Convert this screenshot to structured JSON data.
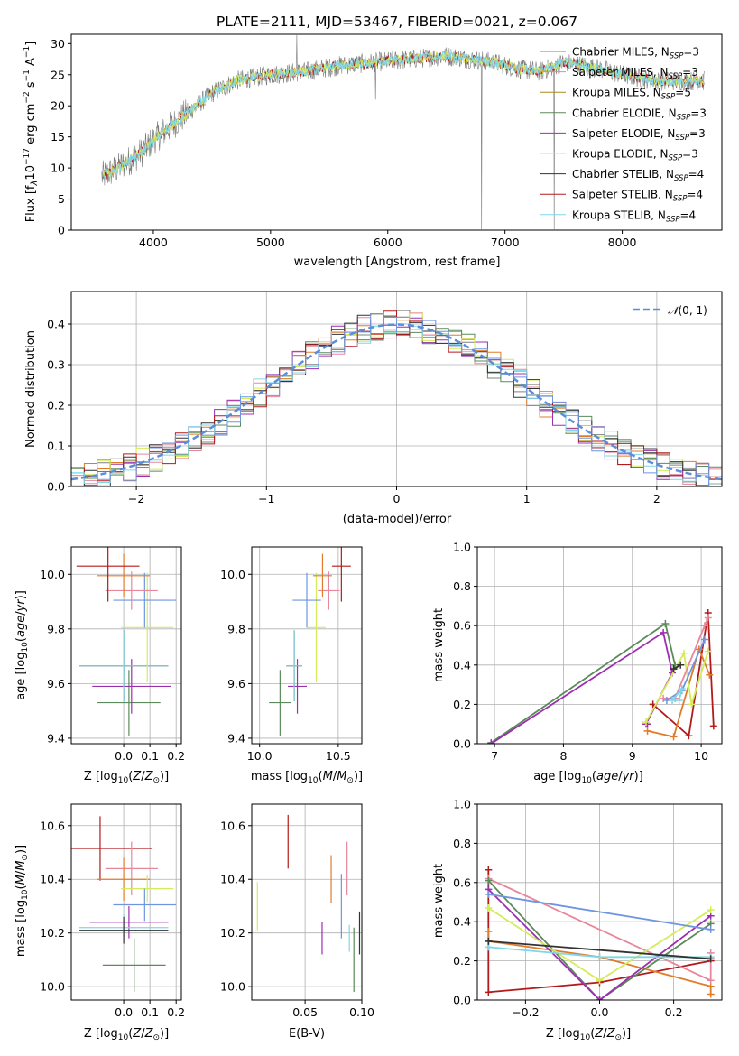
{
  "colors": {
    "chabrier_miles": "#808080",
    "salpeter_miles": "#e8879c",
    "kroupa_miles": "#b08a1a",
    "chabrier_elodie": "#5b8a5b",
    "salpeter_elodie": "#9b2fb0",
    "kroupa_elodie": "#d4ec5a",
    "chabrier_stelib": "#333333",
    "salpeter_stelib": "#b31b1b",
    "kroupa_stelib": "#7fd6e6",
    "normal": "#5b8dd9",
    "orange": "#e07b2a",
    "blue": "#6f95e0"
  },
  "chart_data": [
    {
      "type": "line",
      "title": "PLATE=2111, MJD=53467, FIBERID=0021, z=0.067",
      "xlabel": "wavelength [Angstrom, rest frame]",
      "ylabel": "Flux [fλ10⁻¹⁷ erg cm⁻² s⁻¹ A⁻¹]",
      "xlim": [
        3300,
        8850
      ],
      "ylim": [
        0,
        31.5
      ],
      "xticks": [
        "4000",
        "5000",
        "6000",
        "7000",
        "8000"
      ],
      "yticks": [
        "0",
        "5",
        "10",
        "15",
        "20",
        "25",
        "30"
      ],
      "legend_position": "right",
      "legend": [
        {
          "label": "Chabrier MILES, NSSP=3",
          "color_key": "chabrier_miles"
        },
        {
          "label": "Salpeter MILES, NSSP=3",
          "color_key": "salpeter_miles"
        },
        {
          "label": "Kroupa MILES, NSSP=5",
          "color_key": "kroupa_miles"
        },
        {
          "label": "Chabrier ELODIE, NSSP=3",
          "color_key": "chabrier_elodie"
        },
        {
          "label": "Salpeter ELODIE, NSSP=3",
          "color_key": "salpeter_elodie"
        },
        {
          "label": "Kroupa ELODIE, NSSP=3",
          "color_key": "kroupa_elodie"
        },
        {
          "label": "Chabrier STELIB, NSSP=4",
          "color_key": "chabrier_stelib"
        },
        {
          "label": "Salpeter STELIB, NSSP=4",
          "color_key": "salpeter_stelib"
        },
        {
          "label": "Kroupa STELIB, NSSP=4",
          "color_key": "kroupa_stelib"
        }
      ],
      "continuum": {
        "x": [
          3550,
          3700,
          3900,
          4000,
          4100,
          4300,
          4500,
          4700,
          5000,
          5300,
          5600,
          5900,
          6200,
          6500,
          6700,
          6900,
          7100,
          7300,
          7500,
          7800,
          8000,
          8300,
          8700
        ],
        "y": [
          8.5,
          10,
          12.5,
          14.5,
          16,
          19,
          22,
          24,
          25,
          25.5,
          26.5,
          27,
          27.5,
          28,
          27.5,
          27,
          26,
          25.5,
          27,
          26,
          25,
          24,
          24
        ]
      }
    },
    {
      "type": "line",
      "xlabel": "(data-model)/error",
      "ylabel": "Normed distribution",
      "xlim": [
        -2.5,
        2.5
      ],
      "ylim": [
        0,
        0.48
      ],
      "xticks": [
        "−2",
        "−1",
        "0",
        "1",
        "2"
      ],
      "yticks": [
        "0.0",
        "0.1",
        "0.2",
        "0.3",
        "0.4"
      ],
      "legend": [
        {
          "label": "𝒩(0, 1)",
          "color_key": "normal"
        }
      ],
      "legend_position": "top-right",
      "grid": true
    },
    {
      "type": "scatter",
      "xlabel": "Z [log10(Z/Z⊙)]",
      "ylabel": "age  [log10(age/yr)]",
      "xlim": [
        -0.2,
        0.22
      ],
      "ylim": [
        9.38,
        10.1
      ],
      "xticks": [
        "0.0",
        "0.1",
        "0.2"
      ],
      "yticks": [
        "9.4",
        "9.6",
        "9.8",
        "10.0"
      ],
      "grid": true,
      "points": [
        {
          "x": 0.02,
          "y": 9.53,
          "xerr": 0.12,
          "yerr": 0.12,
          "color_key": "chabrier_elodie"
        },
        {
          "x": 0.03,
          "y": 9.59,
          "xerr": 0.15,
          "yerr": 0.1,
          "color_key": "salpeter_elodie"
        },
        {
          "x": 0.0,
          "y": 9.665,
          "xerr": 0.17,
          "yerr": 0.13,
          "color_key": "chabrier_stelib"
        },
        {
          "x": 0.0,
          "y": 9.665,
          "xerr": 0.17,
          "yerr": 0.13,
          "color_key": "kroupa_stelib"
        },
        {
          "x": 0.09,
          "y": 9.805,
          "xerr": 0.1,
          "yerr": 0.2,
          "color_key": "kroupa_elodie"
        },
        {
          "x": 0.08,
          "y": 9.905,
          "xerr": 0.12,
          "yerr": 0.1,
          "color_key": "blue"
        },
        {
          "x": 0.03,
          "y": 9.94,
          "xerr": 0.1,
          "yerr": 0.07,
          "color_key": "salpeter_miles"
        },
        {
          "x": 0.0,
          "y": 9.995,
          "xerr": 0.1,
          "yerr": 0.08,
          "color_key": "orange"
        },
        {
          "x": -0.06,
          "y": 10.03,
          "xerr": 0.12,
          "yerr": 0.13,
          "color_key": "salpeter_stelib"
        }
      ]
    },
    {
      "type": "scatter",
      "xlabel": "mass [log10(M/M⊙)]",
      "xlim": [
        9.95,
        10.65
      ],
      "ylim": [
        9.38,
        10.1
      ],
      "xticks": [
        "10.0",
        "10.5"
      ],
      "yticks": [
        "9.4",
        "9.6",
        "9.8",
        "10.0"
      ],
      "grid": true,
      "points": [
        {
          "x": 10.13,
          "y": 9.53,
          "xerr": 0.07,
          "yerr": 0.12,
          "color_key": "chabrier_elodie"
        },
        {
          "x": 10.24,
          "y": 9.59,
          "xerr": 0.06,
          "yerr": 0.1,
          "color_key": "salpeter_elodie"
        },
        {
          "x": 10.22,
          "y": 9.665,
          "xerr": 0.05,
          "yerr": 0.13,
          "color_key": "chabrier_stelib"
        },
        {
          "x": 10.22,
          "y": 9.665,
          "xerr": 0.05,
          "yerr": 0.13,
          "color_key": "kroupa_stelib"
        },
        {
          "x": 10.36,
          "y": 9.805,
          "xerr": 0.06,
          "yerr": 0.2,
          "color_key": "kroupa_elodie"
        },
        {
          "x": 10.3,
          "y": 9.905,
          "xerr": 0.09,
          "yerr": 0.1,
          "color_key": "blue"
        },
        {
          "x": 10.44,
          "y": 9.94,
          "xerr": 0.07,
          "yerr": 0.07,
          "color_key": "salpeter_miles"
        },
        {
          "x": 10.4,
          "y": 9.995,
          "xerr": 0.06,
          "yerr": 0.08,
          "color_key": "orange"
        },
        {
          "x": 10.52,
          "y": 10.03,
          "xerr": 0.06,
          "yerr": 0.13,
          "color_key": "salpeter_stelib"
        }
      ]
    },
    {
      "type": "line",
      "xlabel": "age  [log10(age/yr)]",
      "ylabel": "mass weight",
      "xlim": [
        6.75,
        10.3
      ],
      "ylim": [
        0,
        1
      ],
      "xticks": [
        "7",
        "8",
        "9",
        "10"
      ],
      "yticks": [
        "0.0",
        "0.2",
        "0.4",
        "0.6",
        "0.8",
        "1.0"
      ],
      "grid": true,
      "series": [
        {
          "color_key": "chabrier_elodie",
          "x": [
            6.95,
            9.48,
            9.62,
            9.6
          ],
          "y": [
            0.005,
            0.61,
            0.4,
            0.38
          ]
        },
        {
          "color_key": "salpeter_elodie",
          "x": [
            6.95,
            9.45,
            9.58,
            9.2,
            9.22
          ],
          "y": [
            0.0,
            0.565,
            0.36,
            0.1,
            0.1
          ]
        },
        {
          "color_key": "salpeter_stelib",
          "x": [
            9.3,
            9.82,
            10.1,
            10.18
          ],
          "y": [
            0.2,
            0.04,
            0.665,
            0.09
          ]
        },
        {
          "color_key": "orange",
          "x": [
            9.22,
            9.6,
            9.97,
            10.12
          ],
          "y": [
            0.065,
            0.035,
            0.48,
            0.35
          ]
        },
        {
          "color_key": "kroupa_elodie",
          "x": [
            9.2,
            9.75,
            9.86,
            10.1
          ],
          "y": [
            0.11,
            0.46,
            0.2,
            0.47
          ]
        },
        {
          "color_key": "salpeter_miles",
          "x": [
            9.45,
            9.62,
            10.05,
            10.1
          ],
          "y": [
            0.23,
            0.23,
            0.6,
            0.64
          ]
        },
        {
          "color_key": "blue",
          "x": [
            9.5,
            9.72,
            10.05
          ],
          "y": [
            0.22,
            0.27,
            0.53
          ]
        },
        {
          "color_key": "kroupa_stelib",
          "x": [
            9.58,
            9.72,
            9.68
          ],
          "y": [
            0.22,
            0.28,
            0.22
          ]
        },
        {
          "color_key": "chabrier_stelib",
          "x": [
            9.6,
            9.7
          ],
          "y": [
            0.38,
            0.4
          ]
        }
      ]
    },
    {
      "type": "scatter",
      "xlabel": "Z [log10(Z/Z⊙)]",
      "ylabel": "mass [log10(M/M⊙)]",
      "xlim": [
        -0.2,
        0.22
      ],
      "ylim": [
        9.95,
        10.68
      ],
      "xticks": [
        "0.0",
        "0.1",
        "0.2"
      ],
      "yticks": [
        "10.0",
        "10.2",
        "10.4",
        "10.6"
      ],
      "grid": true,
      "points": [
        {
          "x": -0.09,
          "y": 10.515,
          "xerr": 0.2,
          "yerr": 0.12,
          "color_key": "salpeter_stelib"
        },
        {
          "x": 0.03,
          "y": 10.44,
          "xerr": 0.1,
          "yerr": 0.1,
          "color_key": "salpeter_miles"
        },
        {
          "x": 0.0,
          "y": 10.4,
          "xerr": 0.1,
          "yerr": 0.08,
          "color_key": "orange"
        },
        {
          "x": 0.09,
          "y": 10.365,
          "xerr": 0.1,
          "yerr": 0.05,
          "color_key": "kroupa_elodie"
        },
        {
          "x": 0.08,
          "y": 10.305,
          "xerr": 0.12,
          "yerr": 0.06,
          "color_key": "blue"
        },
        {
          "x": 0.02,
          "y": 10.24,
          "xerr": 0.15,
          "yerr": 0.06,
          "color_key": "salpeter_elodie"
        },
        {
          "x": 0.0,
          "y": 10.22,
          "xerr": 0.17,
          "yerr": 0.05,
          "color_key": "kroupa_stelib"
        },
        {
          "x": 0.0,
          "y": 10.21,
          "xerr": 0.17,
          "yerr": 0.05,
          "color_key": "chabrier_stelib"
        },
        {
          "x": 0.04,
          "y": 10.08,
          "xerr": 0.12,
          "yerr": 0.1,
          "color_key": "chabrier_elodie"
        }
      ]
    },
    {
      "type": "scatter",
      "xlabel": "E(B-V)",
      "xlim": [
        0.003,
        0.1
      ],
      "ylim": [
        9.95,
        10.68
      ],
      "xticks": [
        "0.05",
        "0.10"
      ],
      "yticks": [
        "10.0",
        "10.2",
        "10.4",
        "10.6"
      ],
      "grid": true,
      "points": [
        {
          "x": 0.035,
          "y": 10.54,
          "yerr": 0.1,
          "color_key": "salpeter_stelib"
        },
        {
          "x": 0.087,
          "y": 10.44,
          "yerr": 0.1,
          "color_key": "salpeter_miles"
        },
        {
          "x": 0.073,
          "y": 10.4,
          "yerr": 0.09,
          "color_key": "orange"
        },
        {
          "x": 0.008,
          "y": 10.3,
          "yerr": 0.09,
          "color_key": "kroupa_elodie"
        },
        {
          "x": 0.082,
          "y": 10.3,
          "yerr": 0.12,
          "color_key": "blue"
        },
        {
          "x": 0.065,
          "y": 10.18,
          "yerr": 0.06,
          "color_key": "salpeter_elodie"
        },
        {
          "x": 0.089,
          "y": 10.18,
          "yerr": 0.05,
          "color_key": "kroupa_stelib"
        },
        {
          "x": 0.098,
          "y": 10.2,
          "yerr": 0.08,
          "color_key": "chabrier_stelib"
        },
        {
          "x": 0.093,
          "y": 10.1,
          "yerr": 0.12,
          "color_key": "chabrier_elodie"
        }
      ]
    },
    {
      "type": "line",
      "xlabel": "Z [log10(Z/Z⊙)]",
      "ylabel": "mass weight",
      "xlim": [
        -0.33,
        0.33
      ],
      "ylim": [
        0,
        1
      ],
      "xticks": [
        "−0.2",
        "0.0",
        "0.2"
      ],
      "yticks": [
        "0.0",
        "0.2",
        "0.4",
        "0.6",
        "0.8",
        "1.0"
      ],
      "grid": true,
      "series": [
        {
          "color_key": "salpeter_stelib",
          "x": [
            -0.3,
            -0.3,
            0.0,
            0.3
          ],
          "y": [
            0.665,
            0.04,
            0.09,
            0.2
          ]
        },
        {
          "color_key": "orange",
          "x": [
            -0.3,
            -0.3,
            0.0,
            0.3,
            0.3
          ],
          "y": [
            0.35,
            0.3,
            0.22,
            0.07,
            0.03
          ]
        },
        {
          "color_key": "salpeter_miles",
          "x": [
            -0.3,
            0.3,
            0.3
          ],
          "y": [
            0.62,
            0.1,
            0.24
          ]
        },
        {
          "color_key": "chabrier_elodie",
          "x": [
            -0.3,
            0.0,
            0.3
          ],
          "y": [
            0.61,
            0.0,
            0.39
          ]
        },
        {
          "color_key": "salpeter_elodie",
          "x": [
            -0.3,
            0.0,
            0.3
          ],
          "y": [
            0.565,
            0.0,
            0.43
          ]
        },
        {
          "color_key": "kroupa_elodie",
          "x": [
            -0.3,
            0.0,
            0.3
          ],
          "y": [
            0.47,
            0.1,
            0.46
          ]
        },
        {
          "color_key": "blue",
          "x": [
            -0.3,
            0.3
          ],
          "y": [
            0.54,
            0.36
          ]
        },
        {
          "color_key": "kroupa_stelib",
          "x": [
            -0.3,
            0.0,
            0.3
          ],
          "y": [
            0.27,
            0.22,
            0.22
          ]
        },
        {
          "color_key": "chabrier_stelib",
          "x": [
            -0.3,
            0.3
          ],
          "y": [
            0.3,
            0.21
          ]
        }
      ]
    }
  ]
}
